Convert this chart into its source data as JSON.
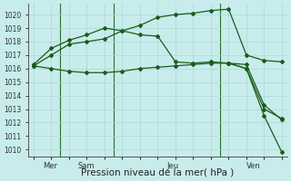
{
  "title": "Pression niveau de la mer( hPa )",
  "bg_color": "#c8ecec",
  "grid_color": "#a8d8d8",
  "line_color": "#1a5c1a",
  "ylim": [
    1009.5,
    1020.8
  ],
  "yticks": [
    1010,
    1011,
    1012,
    1013,
    1014,
    1015,
    1016,
    1017,
    1018,
    1019,
    1020
  ],
  "xlim": [
    -0.3,
    14.3
  ],
  "day_labels": [
    "Mer",
    "Sam",
    "Jeu",
    "Ven"
  ],
  "day_positions": [
    0.5,
    2.5,
    7.5,
    12.0
  ],
  "vline_positions": [
    1.5,
    4.5,
    10.5
  ],
  "line1_x": [
    0,
    1,
    2,
    3,
    4,
    5,
    6,
    7,
    8,
    9,
    10,
    11,
    12,
    13,
    14
  ],
  "line1_y": [
    1016.2,
    1017.0,
    1017.8,
    1018.0,
    1018.2,
    1018.8,
    1019.2,
    1019.8,
    1020.0,
    1020.1,
    1020.3,
    1020.4,
    1017.0,
    1016.6,
    1016.5
  ],
  "line2_x": [
    0,
    1,
    2,
    3,
    4,
    5,
    6,
    7,
    8,
    9,
    10,
    11,
    12,
    13,
    14
  ],
  "line2_y": [
    1016.3,
    1017.5,
    1018.1,
    1018.5,
    1019.0,
    1018.8,
    1018.5,
    1018.4,
    1016.5,
    1016.4,
    1016.5,
    1016.4,
    1016.0,
    1013.0,
    1012.3
  ],
  "line3_x": [
    0,
    1,
    2,
    3,
    4,
    5,
    6,
    7,
    8,
    9,
    10,
    11,
    12,
    13,
    14
  ],
  "line3_y": [
    1016.2,
    1016.0,
    1015.8,
    1015.7,
    1015.7,
    1015.8,
    1016.0,
    1016.1,
    1016.2,
    1016.3,
    1016.4,
    1016.4,
    1016.3,
    1013.3,
    1012.2
  ],
  "line4_x": [
    11,
    12,
    13,
    14
  ],
  "line4_y": [
    1016.4,
    1016.0,
    1012.5,
    1009.8
  ],
  "xlabel_fontsize": 7.5,
  "ytick_fontsize": 5.5,
  "xtick_fontsize": 6.0
}
